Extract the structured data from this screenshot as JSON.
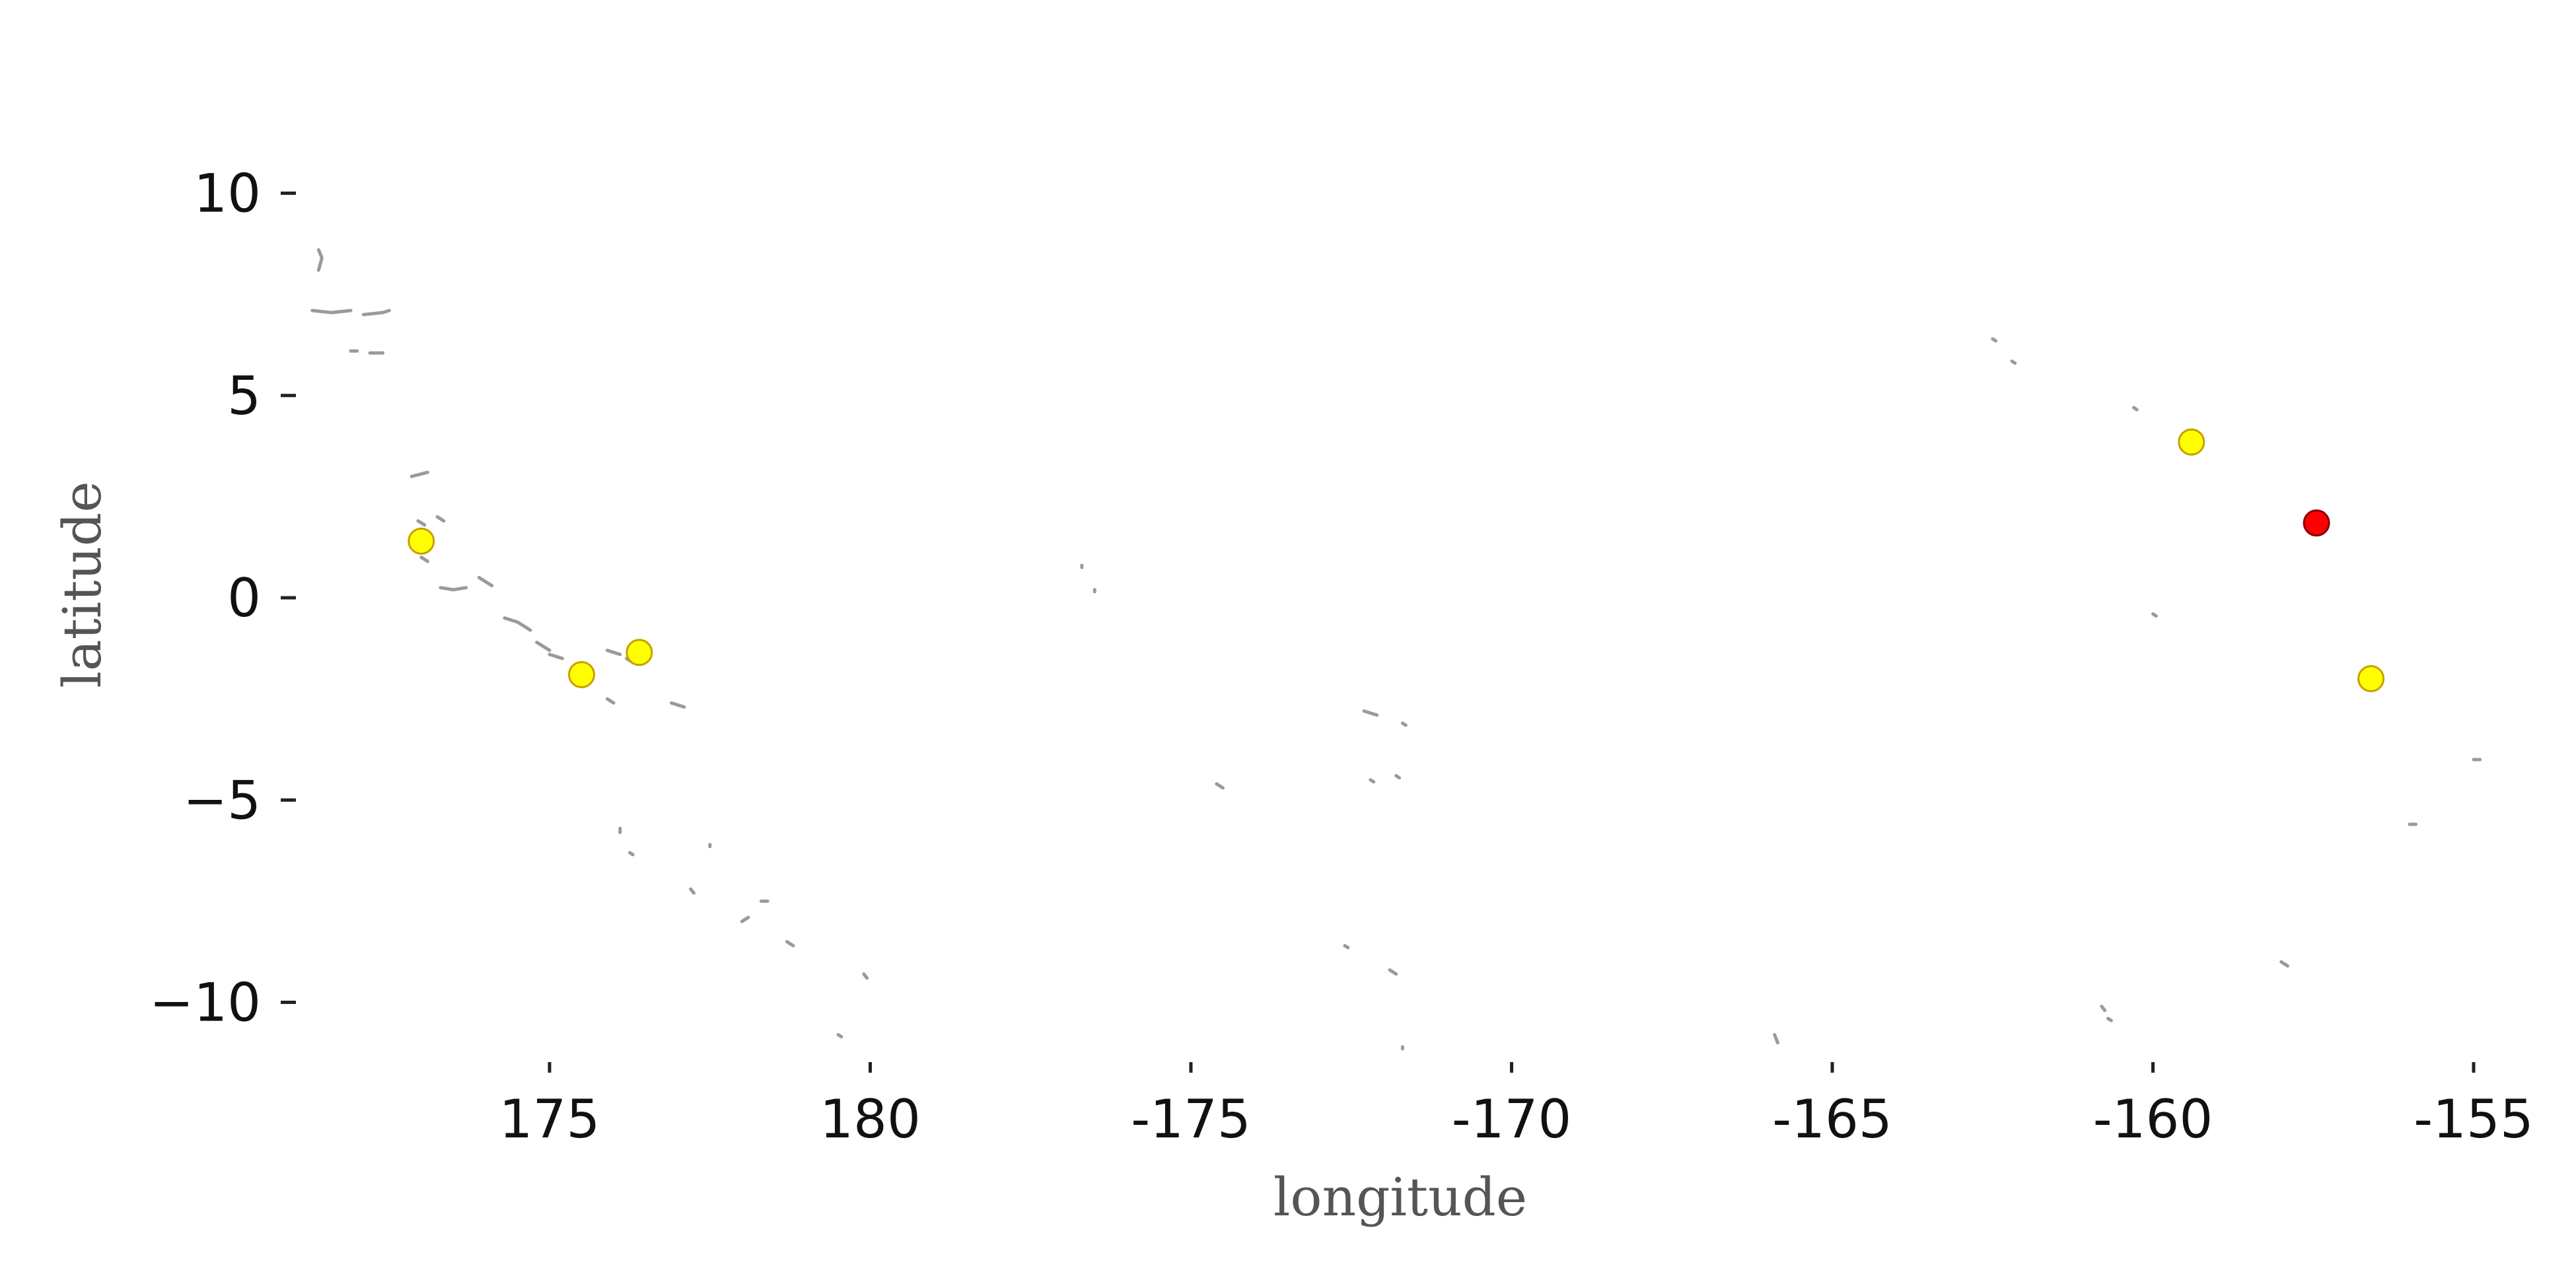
{
  "chart_data": {
    "type": "scatter",
    "title": "",
    "xlabel": "longitude",
    "ylabel": "latitude",
    "x_domain": [
      171.2,
      205.2
    ],
    "ylim": [
      -11.2,
      12.5
    ],
    "x_ticks": [
      {
        "value": 175,
        "label": "175"
      },
      {
        "value": 180,
        "label": "180"
      },
      {
        "value": 185,
        "label": "-175"
      },
      {
        "value": 190,
        "label": "-170"
      },
      {
        "value": 195,
        "label": "-165"
      },
      {
        "value": 200,
        "label": "-160"
      },
      {
        "value": 205,
        "label": "-155"
      }
    ],
    "y_ticks": [
      {
        "value": 10,
        "label": "10"
      },
      {
        "value": 5,
        "label": "5"
      },
      {
        "value": 0,
        "label": "0"
      },
      {
        "value": -5,
        "label": "−5"
      },
      {
        "value": -10,
        "label": "−10"
      }
    ],
    "grid": false,
    "series": [
      {
        "color": "#ffff00",
        "edge_color": "#c8a000",
        "points": [
          {
            "lon": 173.0,
            "lat": 1.4
          },
          {
            "lon": 175.5,
            "lat": -1.9
          },
          {
            "lon": 176.4,
            "lat": -1.35
          },
          {
            "lon": 200.6,
            "lat": 3.85
          },
          {
            "lon": 203.4,
            "lat": -2.0
          }
        ]
      },
      {
        "color": "#ff0000",
        "edge_color": "#8b0000",
        "points": [
          {
            "lon": 202.55,
            "lat": 1.85
          }
        ]
      }
    ],
    "land_outline": {
      "color": "#9a9a9a",
      "segments": [
        [
          [
            171.3,
            7.1
          ],
          [
            171.6,
            7.05
          ],
          [
            171.9,
            7.1
          ]
        ],
        [
          [
            172.1,
            7.0
          ],
          [
            172.4,
            7.05
          ],
          [
            172.5,
            7.1
          ]
        ],
        [
          [
            171.4,
            8.6
          ],
          [
            171.45,
            8.4
          ],
          [
            171.4,
            8.1
          ]
        ],
        [
          [
            171.9,
            6.1
          ],
          [
            172.0,
            6.1
          ]
        ],
        [
          [
            172.2,
            6.05
          ],
          [
            172.4,
            6.05
          ]
        ],
        [
          [
            172.85,
            3.0
          ],
          [
            173.1,
            3.1
          ]
        ],
        [
          [
            172.95,
            1.9
          ],
          [
            173.05,
            1.8
          ]
        ],
        [
          [
            173.25,
            2.0
          ],
          [
            173.35,
            1.9
          ]
        ],
        [
          [
            173.0,
            1.0
          ],
          [
            173.1,
            0.9
          ]
        ],
        [
          [
            173.3,
            0.25
          ],
          [
            173.5,
            0.2
          ],
          [
            173.7,
            0.25
          ]
        ],
        [
          [
            173.9,
            0.5
          ],
          [
            174.1,
            0.3
          ]
        ],
        [
          [
            174.3,
            -0.5
          ],
          [
            174.5,
            -0.6
          ],
          [
            174.7,
            -0.8
          ]
        ],
        [
          [
            174.8,
            -1.1
          ],
          [
            175.0,
            -1.3
          ]
        ],
        [
          [
            175.0,
            -1.4
          ],
          [
            175.2,
            -1.5
          ]
        ],
        [
          [
            175.9,
            -1.3
          ],
          [
            176.1,
            -1.4
          ]
        ],
        [
          [
            176.2,
            -1.5
          ],
          [
            176.3,
            -1.6
          ]
        ],
        [
          [
            175.9,
            -2.5
          ],
          [
            176.0,
            -2.6
          ]
        ],
        [
          [
            176.9,
            -2.6
          ],
          [
            177.1,
            -2.7
          ]
        ],
        [
          [
            176.1,
            -5.7
          ],
          [
            176.1,
            -5.8
          ]
        ],
        [
          [
            176.25,
            -6.3
          ],
          [
            176.3,
            -6.35
          ]
        ],
        [
          [
            177.5,
            -6.1
          ],
          [
            177.5,
            -6.15
          ]
        ],
        [
          [
            177.2,
            -7.2
          ],
          [
            177.25,
            -7.3
          ]
        ],
        [
          [
            178.0,
            -8.0
          ],
          [
            178.1,
            -7.9
          ]
        ],
        [
          [
            178.3,
            -7.5
          ],
          [
            178.4,
            -7.5
          ]
        ],
        [
          [
            178.7,
            -8.5
          ],
          [
            178.8,
            -8.6
          ]
        ],
        [
          [
            179.9,
            -9.3
          ],
          [
            179.95,
            -9.4
          ]
        ],
        [
          [
            179.5,
            -10.8
          ],
          [
            179.55,
            -10.85
          ]
        ],
        [
          [
            183.3,
            0.8
          ],
          [
            183.3,
            0.75
          ]
        ],
        [
          [
            183.5,
            0.2
          ],
          [
            183.5,
            0.15
          ]
        ],
        [
          [
            185.4,
            -4.6
          ],
          [
            185.5,
            -4.7
          ]
        ],
        [
          [
            187.7,
            -2.8
          ],
          [
            187.9,
            -2.9
          ]
        ],
        [
          [
            188.3,
            -3.1
          ],
          [
            188.35,
            -3.15
          ]
        ],
        [
          [
            187.4,
            -8.6
          ],
          [
            187.45,
            -8.65
          ]
        ],
        [
          [
            187.8,
            -4.5
          ],
          [
            187.85,
            -4.55
          ]
        ],
        [
          [
            188.2,
            -4.4
          ],
          [
            188.25,
            -4.45
          ]
        ],
        [
          [
            188.1,
            -9.2
          ],
          [
            188.2,
            -9.3
          ]
        ],
        [
          [
            188.3,
            -11.1
          ],
          [
            188.3,
            -11.15
          ]
        ],
        [
          [
            194.1,
            -10.8
          ],
          [
            194.15,
            -11.0
          ]
        ],
        [
          [
            197.5,
            6.4
          ],
          [
            197.55,
            6.35
          ]
        ],
        [
          [
            197.8,
            5.85
          ],
          [
            197.85,
            5.8
          ]
        ],
        [
          [
            199.7,
            4.7
          ],
          [
            199.75,
            4.65
          ]
        ],
        [
          [
            200.0,
            -0.4
          ],
          [
            200.05,
            -0.45
          ]
        ],
        [
          [
            199.2,
            -10.1
          ],
          [
            199.25,
            -10.2
          ]
        ],
        [
          [
            199.3,
            -10.4
          ],
          [
            199.35,
            -10.45
          ]
        ],
        [
          [
            202.0,
            -9.0
          ],
          [
            202.1,
            -9.1
          ]
        ],
        [
          [
            204.0,
            -5.6
          ],
          [
            204.1,
            -5.6
          ]
        ],
        [
          [
            205.0,
            -4.0
          ],
          [
            205.1,
            -4.0
          ]
        ]
      ]
    }
  }
}
